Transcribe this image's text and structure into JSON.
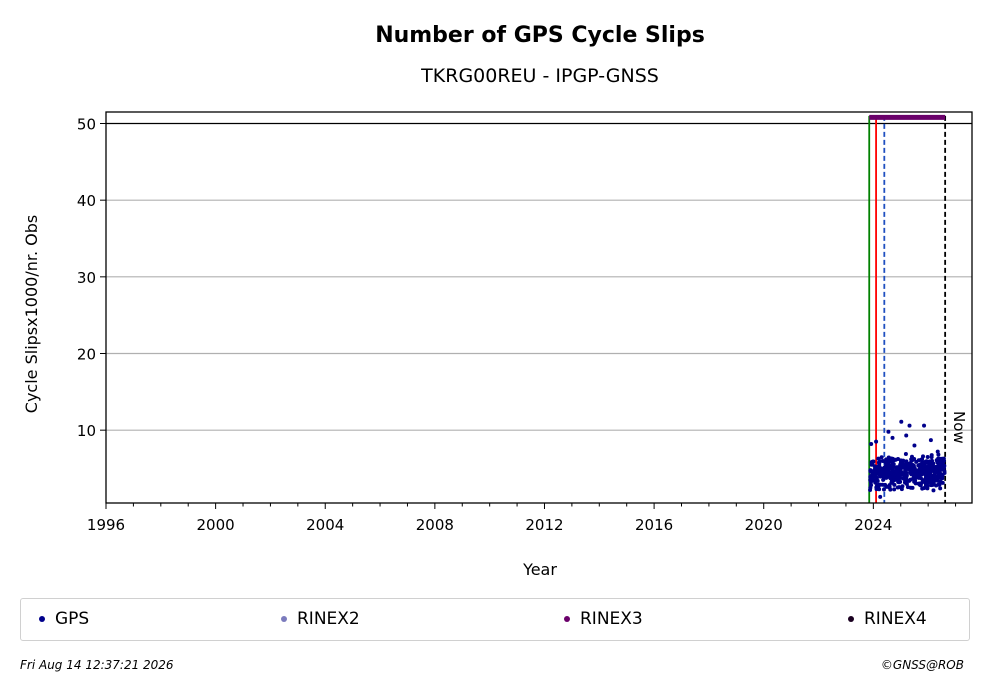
{
  "chart_data": {
    "type": "scatter",
    "title": "Number of GPS Cycle Slips",
    "subtitle": "TKRG00REU - IPGP-GNSS",
    "xlabel": "Year",
    "ylabel": "Cycle Slipsx1000/nr. Obs",
    "xlim": [
      1996,
      2027.6
    ],
    "ylim": [
      0.5,
      51.5
    ],
    "xticks": [
      1996,
      2000,
      2004,
      2008,
      2012,
      2016,
      2020,
      2024
    ],
    "yticks": [
      10,
      20,
      30,
      40,
      50
    ],
    "grid": "horizontal",
    "reference_line_y": 50,
    "vlines": [
      {
        "x": 2023.85,
        "color": "#008000",
        "style": "solid"
      },
      {
        "x": 2024.1,
        "color": "#ff0000",
        "style": "solid"
      },
      {
        "x": 2024.4,
        "color": "#1f4fc0",
        "style": "dashed"
      },
      {
        "x": 2026.62,
        "color": "#000000",
        "style": "dashed",
        "label": "Now"
      }
    ],
    "rinex3_bar": {
      "x_start": 2023.85,
      "x_end": 2026.62,
      "y": 50.8
    },
    "series": [
      {
        "name": "GPS",
        "color": "#00008b",
        "x_range": [
          2023.88,
          2026.6
        ],
        "typical_range": [
          2,
          7
        ],
        "outliers": [
          [
            2023.92,
            8.2
          ],
          [
            2024.1,
            8.5
          ],
          [
            2024.55,
            9.8
          ],
          [
            2024.7,
            9.0
          ],
          [
            2025.02,
            11.1
          ],
          [
            2025.2,
            9.3
          ],
          [
            2025.32,
            10.6
          ],
          [
            2025.5,
            8.0
          ],
          [
            2025.85,
            10.6
          ],
          [
            2026.1,
            8.7
          ],
          [
            2026.35,
            7.2
          ],
          [
            2024.25,
            1.3
          ]
        ]
      },
      {
        "name": "RINEX2",
        "color": "#7b7bbd"
      },
      {
        "name": "RINEX3",
        "color": "#6a006a"
      },
      {
        "name": "RINEX4",
        "color": "#1a0020"
      }
    ]
  },
  "footer": {
    "timestamp": "Fri Aug 14 12:37:21 2026",
    "credit": "©GNSS@ROB"
  }
}
